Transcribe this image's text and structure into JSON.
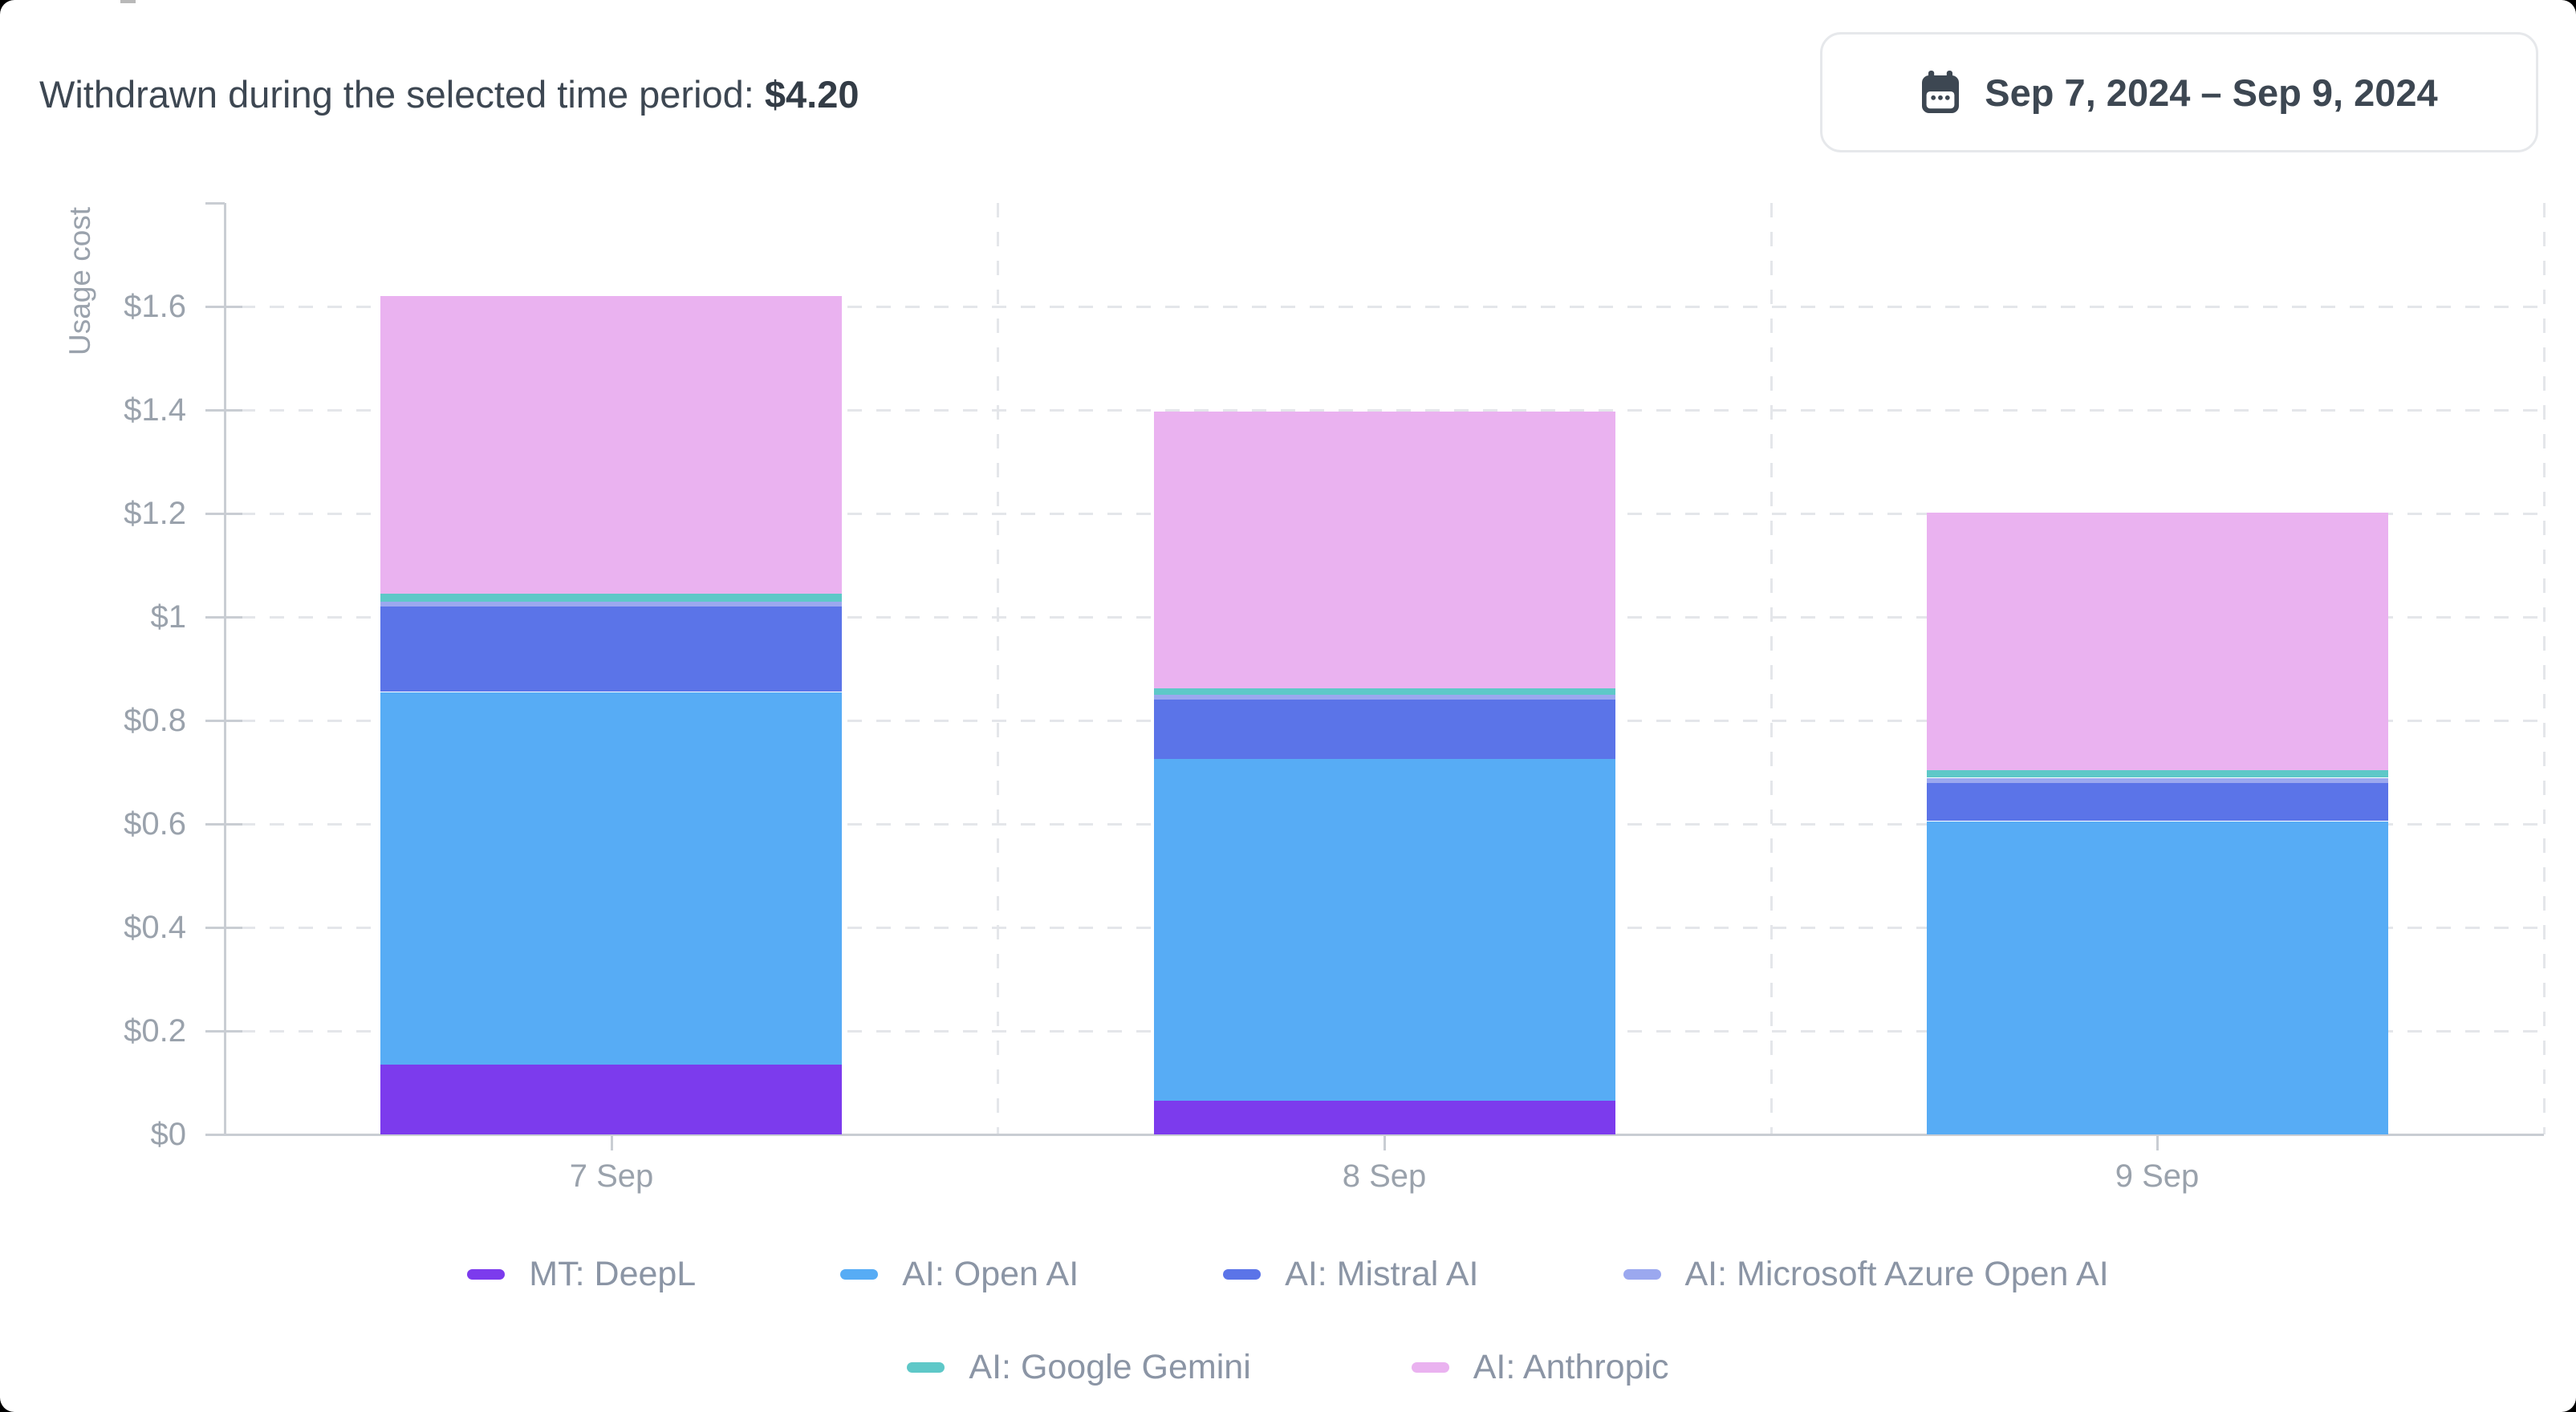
{
  "header": {
    "summary_label": "Withdrawn during the selected time period:",
    "summary_value": "$4.20"
  },
  "date_picker": {
    "label": "Sep 7, 2024 – Sep 9, 2024",
    "icon": "calendar-icon"
  },
  "chart_data": {
    "type": "bar",
    "stacked": true,
    "ylabel": "Usage cost",
    "xlabel": "",
    "categories": [
      "7 Sep",
      "8 Sep",
      "9 Sep"
    ],
    "series": [
      {
        "name": "MT: DeepL",
        "color": "#7c3bed",
        "values": [
          0.135,
          0.065,
          0
        ]
      },
      {
        "name": "AI: Open AI",
        "color": "#57acf5",
        "values": [
          0.72,
          0.66,
          0.605
        ]
      },
      {
        "name": "AI: Mistral AI",
        "color": "#5b74e8",
        "values": [
          0.165,
          0.115,
          0.075
        ]
      },
      {
        "name": "AI: Microsoft Azure Open AI",
        "color": "#9ba8ef",
        "values": [
          0.01,
          0.01,
          0.009
        ]
      },
      {
        "name": "AI: Google Gemini",
        "color": "#5ec8c8",
        "values": [
          0.015,
          0.012,
          0.016
        ]
      },
      {
        "name": "AI: Anthropic",
        "color": "#eab2f0",
        "values": [
          0.575,
          0.535,
          0.497
        ]
      }
    ],
    "totals": [
      1.62,
      1.397,
      1.202
    ],
    "ylim": [
      0,
      1.8
    ],
    "ytick_values": [
      0,
      0.2,
      0.4,
      0.6,
      0.8,
      1.0,
      1.2,
      1.4,
      1.6
    ],
    "ytick_labels": [
      "$0",
      "$0.2",
      "$0.4",
      "$0.6",
      "$0.8",
      "$1",
      "$1.2",
      "$1.4",
      "$1.6"
    ],
    "grid": "dashed",
    "legend_position": "bottom",
    "legend_rows": [
      [
        "MT: DeepL",
        "AI: Open AI",
        "AI: Mistral AI",
        "AI: Microsoft Azure Open AI"
      ],
      [
        "AI: Google Gemini",
        "AI: Anthropic"
      ]
    ],
    "axis_color": "#c9cdd3",
    "grid_color": "#e4e6ea",
    "tick_text_color": "#9aa2ac"
  }
}
